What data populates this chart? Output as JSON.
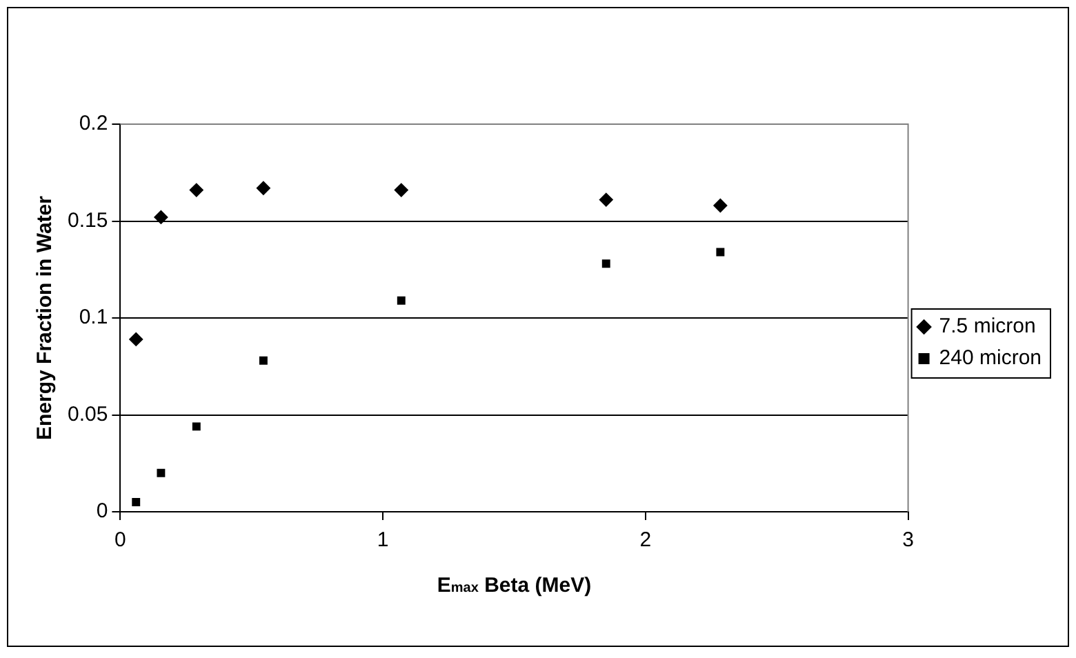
{
  "chart_data": {
    "type": "scatter",
    "xlabel": "E$_{max}$ Beta (MeV)",
    "ylabel": "Energy Fraction in Water",
    "x": [
      0.06,
      0.155,
      0.29,
      0.545,
      1.07,
      1.85,
      2.285
    ],
    "series": [
      {
        "name": "7.5 micron",
        "color": "#000000",
        "marker": "diamond",
        "values": [
          0.089,
          0.152,
          0.166,
          0.167,
          0.166,
          0.161,
          0.158
        ]
      },
      {
        "name": "240 micron",
        "color": "#000000",
        "marker": "square",
        "values": [
          0.005,
          0.02,
          0.044,
          0.078,
          0.109,
          0.128,
          0.134
        ]
      }
    ],
    "xlim": [
      0,
      3
    ],
    "xticks": [
      0,
      1,
      2,
      3
    ],
    "ylim": [
      0,
      0.2
    ],
    "yticks": [
      0,
      0.05,
      0.1,
      0.15,
      0.2
    ],
    "grid": "y",
    "legend": "right"
  }
}
